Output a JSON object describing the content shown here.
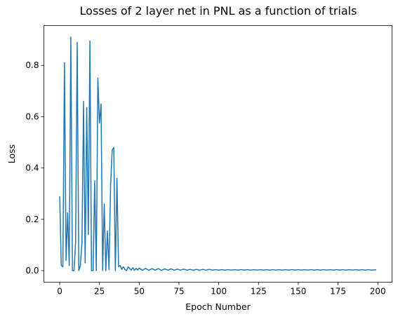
{
  "chart_data": {
    "type": "line",
    "title": "Losses of 2 layer net in PNL as a function of trials",
    "xlabel": "Epoch Number",
    "ylabel": "Loss",
    "xlim": [
      -9.95,
      208.95
    ],
    "ylim": [
      -0.045,
      0.955
    ],
    "xticks": [
      0,
      25,
      50,
      75,
      100,
      125,
      150,
      175,
      200
    ],
    "xtick_labels": [
      "0",
      "25",
      "50",
      "75",
      "100",
      "125",
      "150",
      "175",
      "200"
    ],
    "yticks": [
      0.0,
      0.2,
      0.4,
      0.6,
      0.8
    ],
    "ytick_labels": [
      "0.0",
      "0.2",
      "0.4",
      "0.6",
      "0.8"
    ],
    "grid": false,
    "line_color": "#1f77b4",
    "series": [
      {
        "x": [
          0,
          1,
          2,
          3,
          4,
          5,
          6,
          7,
          8,
          9,
          10,
          11,
          12,
          13,
          14,
          15,
          16,
          17,
          18,
          19,
          20,
          21,
          22,
          23,
          24,
          25,
          26,
          27,
          28,
          29,
          30,
          31,
          32,
          33,
          34,
          35,
          36,
          37,
          38,
          39,
          40,
          41,
          42,
          43,
          44,
          45,
          46,
          47,
          48,
          49,
          50,
          52,
          54,
          56,
          58,
          60,
          62,
          64,
          66,
          68,
          70,
          72,
          74,
          76,
          78,
          80,
          82,
          84,
          86,
          88,
          90,
          92,
          94,
          96,
          98,
          100,
          102,
          104,
          106,
          108,
          110,
          112,
          114,
          116,
          118,
          120,
          122,
          124,
          126,
          128,
          130,
          132,
          134,
          136,
          138,
          140,
          142,
          144,
          146,
          148,
          150,
          152,
          154,
          156,
          158,
          160,
          162,
          164,
          166,
          168,
          170,
          172,
          174,
          176,
          178,
          180,
          182,
          184,
          186,
          188,
          190,
          192,
          194,
          196,
          198,
          199
        ],
        "y": [
          0.29,
          0.02,
          0.015,
          0.81,
          0.04,
          0.225,
          0.02,
          0.91,
          0.0,
          0.0,
          0.11,
          0.89,
          0.0,
          0.02,
          0.11,
          0.66,
          0.03,
          0.635,
          0.14,
          0.895,
          0.0,
          0.0,
          0.35,
          0.0,
          0.75,
          0.575,
          0.65,
          0.0,
          0.26,
          0.0,
          0.155,
          0.005,
          0.33,
          0.47,
          0.48,
          0.0,
          0.36,
          0.015,
          0.02,
          0.005,
          0.015,
          0.005,
          0.0,
          0.015,
          0.008,
          0.002,
          0.012,
          0.001,
          0.009,
          0.002,
          0.01,
          0.001,
          0.009,
          0.001,
          0.008,
          0.002,
          0.008,
          0.001,
          0.007,
          0.002,
          0.007,
          0.002,
          0.006,
          0.002,
          0.006,
          0.002,
          0.005,
          0.002,
          0.005,
          0.002,
          0.005,
          0.002,
          0.005,
          0.002,
          0.004,
          0.002,
          0.004,
          0.002,
          0.004,
          0.002,
          0.004,
          0.002,
          0.004,
          0.002,
          0.004,
          0.002,
          0.004,
          0.002,
          0.004,
          0.002,
          0.004,
          0.002,
          0.004,
          0.002,
          0.004,
          0.002,
          0.004,
          0.002,
          0.004,
          0.002,
          0.004,
          0.002,
          0.004,
          0.002,
          0.004,
          0.002,
          0.004,
          0.002,
          0.004,
          0.002,
          0.004,
          0.002,
          0.004,
          0.002,
          0.004,
          0.002,
          0.004,
          0.002,
          0.004,
          0.002,
          0.004,
          0.002,
          0.004,
          0.002,
          0.003,
          0.003
        ]
      }
    ]
  }
}
